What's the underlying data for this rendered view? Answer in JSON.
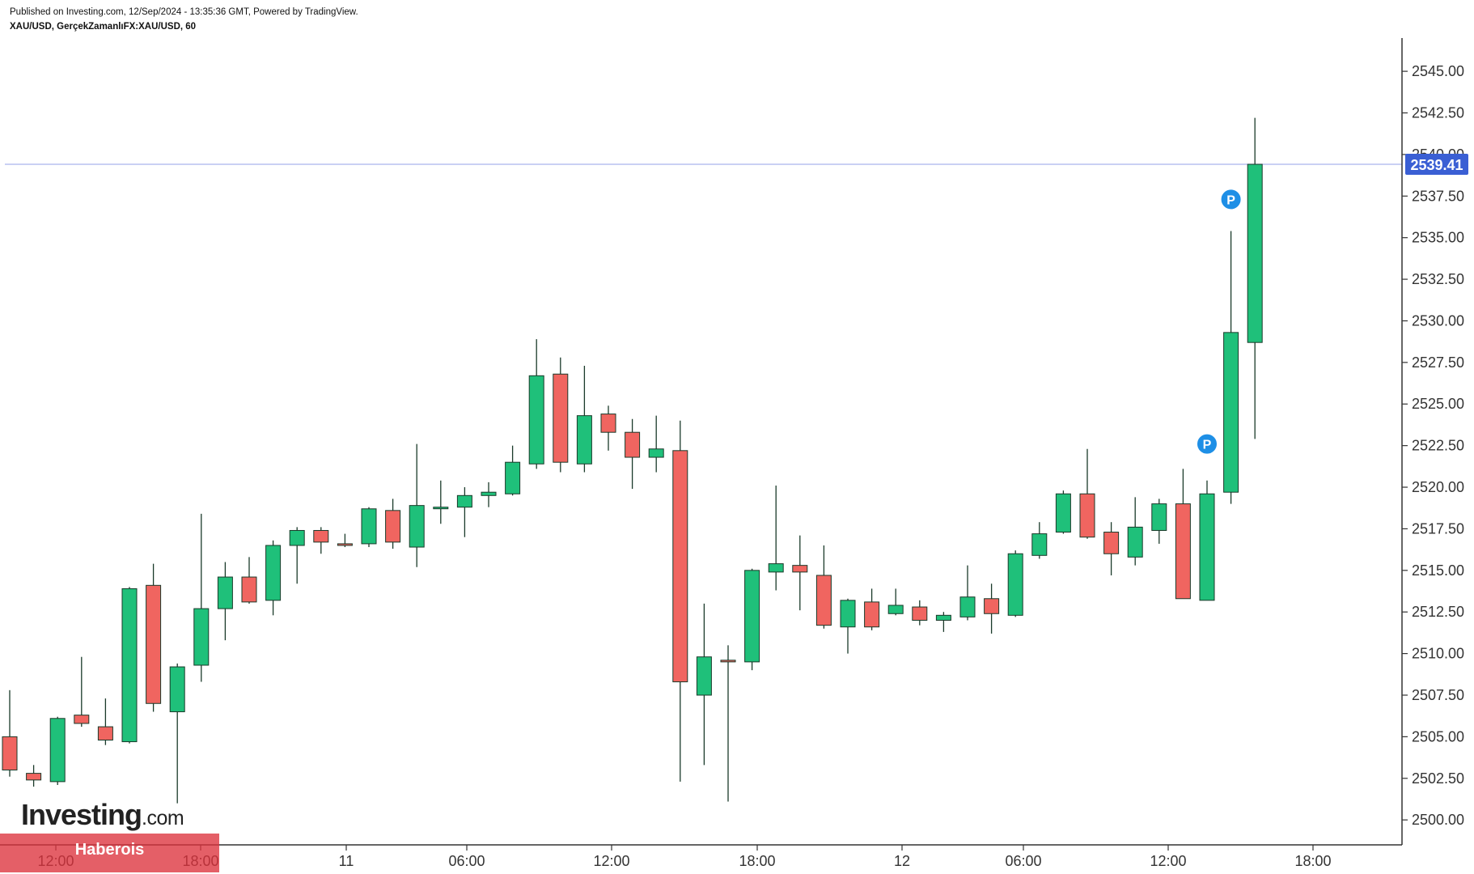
{
  "header": {
    "publish_line": "Published on Investing.com, 12/Sep/2024 - 13:35:36 GMT, Powered by TradingView.",
    "symbol_line": "XAU/USD, GerçekZamanlıFX:XAU/USD, 60"
  },
  "logo": {
    "main": "Investing",
    "suffix": ".com"
  },
  "watermark": {
    "label": "Haberois"
  },
  "colors": {
    "up": "#1fc07a",
    "down": "#f06560",
    "wick": "#1a3a2a",
    "price_tag": "#3a5fd4",
    "price_line": "#aab3ee",
    "marker": "#1e8fe6"
  },
  "chart_data": {
    "type": "candlestick",
    "ylim": [
      2498.5,
      2547
    ],
    "y_ticks": [
      "2500.00",
      "2502.50",
      "2505.00",
      "2507.50",
      "2510.00",
      "2512.50",
      "2515.00",
      "2517.50",
      "2520.00",
      "2522.50",
      "2525.00",
      "2527.50",
      "2530.00",
      "2532.50",
      "2535.00",
      "2537.50",
      "2540.00",
      "2542.50",
      "2545.00"
    ],
    "x_ticks": [
      "12:00",
      "18:00",
      "11",
      "06:00",
      "12:00",
      "18:00",
      "12",
      "06:00",
      "12:00",
      "18:00"
    ],
    "last_price": "2539.41",
    "marker_label": "P",
    "markers": [
      {
        "candle": 50,
        "price": 2522.6
      },
      {
        "candle": 51,
        "price": 2537.3
      }
    ],
    "candles": [
      {
        "o": 2505.0,
        "h": 2507.8,
        "l": 2502.6,
        "c": 2503.0
      },
      {
        "o": 2502.8,
        "h": 2503.3,
        "l": 2502.0,
        "c": 2502.4
      },
      {
        "o": 2502.3,
        "h": 2506.2,
        "l": 2502.1,
        "c": 2506.1
      },
      {
        "o": 2506.3,
        "h": 2509.8,
        "l": 2505.6,
        "c": 2505.8
      },
      {
        "o": 2505.6,
        "h": 2507.3,
        "l": 2504.5,
        "c": 2504.8
      },
      {
        "o": 2504.7,
        "h": 2514.0,
        "l": 2504.6,
        "c": 2513.9
      },
      {
        "o": 2514.1,
        "h": 2515.4,
        "l": 2506.5,
        "c": 2507.0
      },
      {
        "o": 2506.5,
        "h": 2509.4,
        "l": 2501.0,
        "c": 2509.2
      },
      {
        "o": 2509.3,
        "h": 2518.4,
        "l": 2508.3,
        "c": 2512.7
      },
      {
        "o": 2512.7,
        "h": 2515.5,
        "l": 2510.8,
        "c": 2514.6
      },
      {
        "o": 2514.6,
        "h": 2515.8,
        "l": 2513.0,
        "c": 2513.1
      },
      {
        "o": 2513.2,
        "h": 2516.8,
        "l": 2512.3,
        "c": 2516.5
      },
      {
        "o": 2516.5,
        "h": 2517.6,
        "l": 2514.2,
        "c": 2517.4
      },
      {
        "o": 2517.4,
        "h": 2517.6,
        "l": 2516.0,
        "c": 2516.7
      },
      {
        "o": 2516.6,
        "h": 2517.2,
        "l": 2516.4,
        "c": 2516.5
      },
      {
        "o": 2516.6,
        "h": 2518.8,
        "l": 2516.4,
        "c": 2518.7
      },
      {
        "o": 2518.6,
        "h": 2519.3,
        "l": 2516.3,
        "c": 2516.7
      },
      {
        "o": 2516.4,
        "h": 2522.6,
        "l": 2515.2,
        "c": 2518.9
      },
      {
        "o": 2518.8,
        "h": 2520.4,
        "l": 2517.8,
        "c": 2518.8
      },
      {
        "o": 2518.8,
        "h": 2520.0,
        "l": 2517.0,
        "c": 2519.5
      },
      {
        "o": 2519.5,
        "h": 2520.3,
        "l": 2518.8,
        "c": 2519.7
      },
      {
        "o": 2519.6,
        "h": 2522.5,
        "l": 2519.5,
        "c": 2521.5
      },
      {
        "o": 2521.4,
        "h": 2528.9,
        "l": 2521.1,
        "c": 2526.7
      },
      {
        "o": 2526.8,
        "h": 2527.8,
        "l": 2520.9,
        "c": 2521.5
      },
      {
        "o": 2521.4,
        "h": 2527.3,
        "l": 2520.9,
        "c": 2524.3
      },
      {
        "o": 2524.4,
        "h": 2524.9,
        "l": 2522.2,
        "c": 2523.3
      },
      {
        "o": 2523.3,
        "h": 2524.1,
        "l": 2519.9,
        "c": 2521.8
      },
      {
        "o": 2521.8,
        "h": 2524.3,
        "l": 2520.9,
        "c": 2522.3
      },
      {
        "o": 2522.2,
        "h": 2524.0,
        "l": 2502.3,
        "c": 2508.3
      },
      {
        "o": 2507.5,
        "h": 2513.0,
        "l": 2503.3,
        "c": 2509.8
      },
      {
        "o": 2509.6,
        "h": 2510.5,
        "l": 2501.1,
        "c": 2509.5
      },
      {
        "o": 2509.5,
        "h": 2515.1,
        "l": 2509.0,
        "c": 2515.0
      },
      {
        "o": 2514.9,
        "h": 2520.1,
        "l": 2513.8,
        "c": 2515.4
      },
      {
        "o": 2515.3,
        "h": 2517.1,
        "l": 2512.6,
        "c": 2514.9
      },
      {
        "o": 2514.7,
        "h": 2516.5,
        "l": 2511.5,
        "c": 2511.7
      },
      {
        "o": 2511.6,
        "h": 2513.3,
        "l": 2510.0,
        "c": 2513.2
      },
      {
        "o": 2513.1,
        "h": 2513.9,
        "l": 2511.4,
        "c": 2511.6
      },
      {
        "o": 2512.4,
        "h": 2513.9,
        "l": 2512.3,
        "c": 2512.9
      },
      {
        "o": 2512.8,
        "h": 2513.2,
        "l": 2511.7,
        "c": 2512.0
      },
      {
        "o": 2512.0,
        "h": 2512.5,
        "l": 2511.3,
        "c": 2512.3
      },
      {
        "o": 2512.2,
        "h": 2515.3,
        "l": 2512.0,
        "c": 2513.4
      },
      {
        "o": 2513.3,
        "h": 2514.2,
        "l": 2511.2,
        "c": 2512.4
      },
      {
        "o": 2512.3,
        "h": 2516.2,
        "l": 2512.2,
        "c": 2516.0
      },
      {
        "o": 2515.9,
        "h": 2517.9,
        "l": 2515.7,
        "c": 2517.2
      },
      {
        "o": 2517.3,
        "h": 2519.8,
        "l": 2517.2,
        "c": 2519.6
      },
      {
        "o": 2519.6,
        "h": 2522.3,
        "l": 2516.9,
        "c": 2517.0
      },
      {
        "o": 2517.3,
        "h": 2517.9,
        "l": 2514.7,
        "c": 2516.0
      },
      {
        "o": 2515.8,
        "h": 2519.4,
        "l": 2515.3,
        "c": 2517.6
      },
      {
        "o": 2517.4,
        "h": 2519.3,
        "l": 2516.6,
        "c": 2519.0
      },
      {
        "o": 2519.0,
        "h": 2521.1,
        "l": 2513.3,
        "c": 2513.3
      },
      {
        "o": 2513.2,
        "h": 2520.4,
        "l": 2513.2,
        "c": 2519.6
      },
      {
        "o": 2519.7,
        "h": 2535.4,
        "l": 2519.0,
        "c": 2529.3
      },
      {
        "o": 2528.7,
        "h": 2542.2,
        "l": 2522.9,
        "c": 2539.41
      }
    ]
  }
}
